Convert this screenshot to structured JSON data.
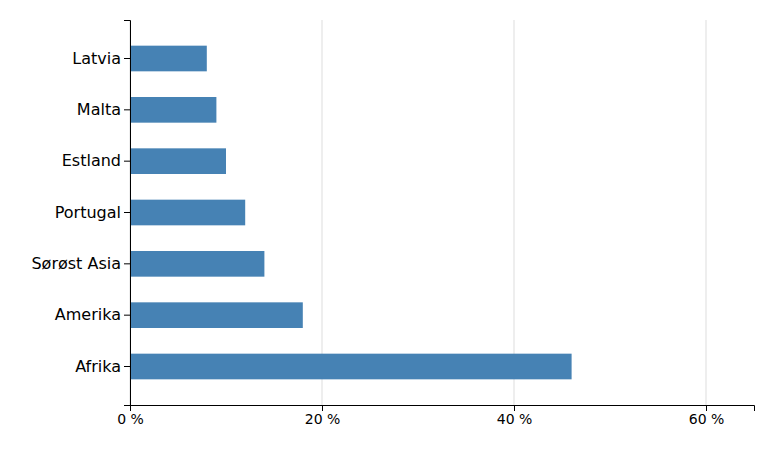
{
  "chart_data": {
    "type": "bar",
    "orientation": "horizontal",
    "categories": [
      "Afrika",
      "Amerika",
      "Sørøst Asia",
      "Portugal",
      "Estland",
      "Malta",
      "Latvia"
    ],
    "values": [
      46,
      18,
      14,
      12,
      10,
      9,
      8
    ],
    "xlim": [
      0,
      65
    ],
    "xticks": [
      {
        "value": 0,
        "label": "0 %"
      },
      {
        "value": 20,
        "label": "20 %"
      },
      {
        "value": 40,
        "label": "40 %"
      },
      {
        "value": 60,
        "label": "60 %"
      }
    ],
    "grid": true
  }
}
